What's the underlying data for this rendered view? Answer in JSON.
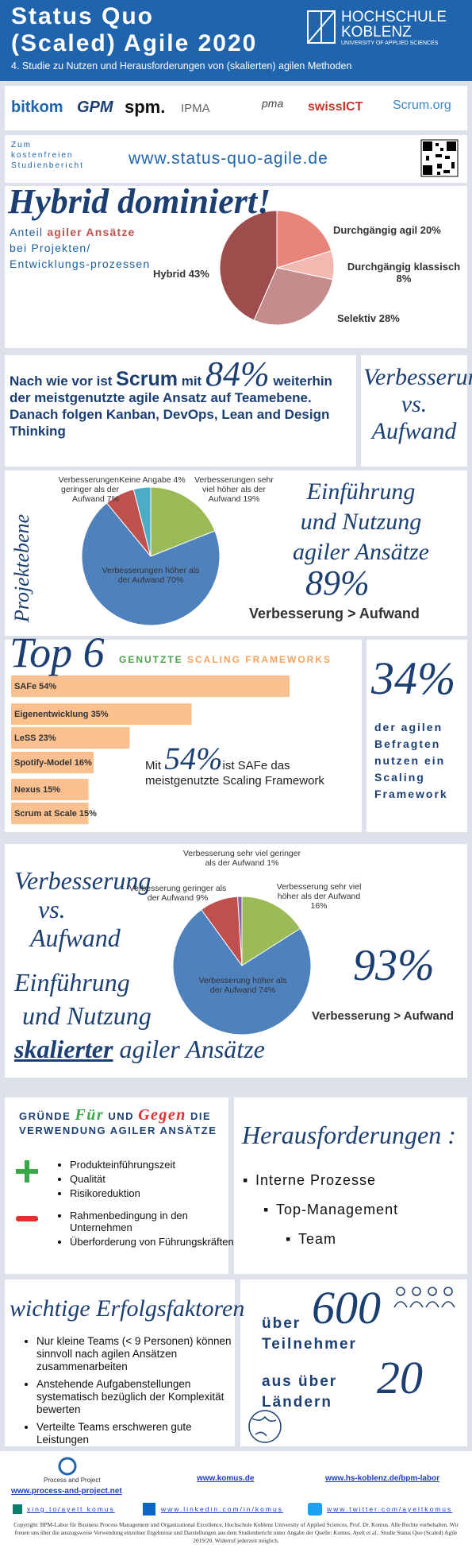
{
  "header": {
    "title_lines": [
      "Status Quo",
      "(Scaled) Agile 2020"
    ],
    "subtitle": "4. Studie zu Nutzen und Herausforderungen von (skalierten) agilen Methoden",
    "logo": [
      "HOCHSCHULE",
      "KOBLENZ",
      "UNIVERSITY OF APPLIED SCIENCES"
    ]
  },
  "partners": [
    "bitkom",
    "GPM",
    "spm.",
    "IPMA",
    "pma",
    "swissICT",
    "Scrum.org"
  ],
  "link": {
    "lead": [
      "Zum",
      "kostenfreien",
      "Studienbericht"
    ],
    "url": "www.status-quo-agile.de"
  },
  "hybrid": {
    "title": "Hybrid dominiert!",
    "text": [
      "Anteil ",
      "agiler Ansätze",
      " bei Projekten/ Entwicklungs-prozessen"
    ],
    "chart": {
      "type": "pie",
      "labels": [
        "Durchgängig agil 20%",
        "Durchgängig klassisch 8%",
        "Selektiv 28%",
        "Hybrid 43%"
      ],
      "values": [
        20,
        8,
        28,
        43
      ],
      "colors": [
        "#e8847a",
        "#f2b9b0",
        "#c48c8c",
        "#9e4c4c"
      ]
    }
  },
  "scrum": {
    "text": [
      "Nach wie vor ist ",
      "Scrum",
      " mit ",
      "84%",
      " weiterhin der meistgenutzte agile Ansatz auf Teamebene. Danach folgen Kanban, DevOps, Lean and Design Thinking"
    ],
    "side": [
      "Verbesserung",
      "vs.",
      "Aufwand"
    ]
  },
  "project": {
    "side_label": "Projektebene",
    "chart": {
      "type": "pie",
      "labels": [
        "Verbesserungen sehr viel höher als der Aufwand 19%",
        "Verbesserungen höher als der Aufwand 70%",
        "Verbesserungen geringer als der Aufwand 7%",
        "Keine Angabe 4%"
      ],
      "values": [
        19,
        70,
        7,
        4
      ],
      "colors": [
        "#9bbb59",
        "#4f81bd",
        "#c0504d",
        "#4bacc6"
      ]
    },
    "headline": [
      "Einführung",
      "und Nutzung",
      "agiler Ansätze"
    ],
    "percent": "89%",
    "result": "Verbesserung > Aufwand"
  },
  "frameworks": {
    "title": "Top 6",
    "subtitle": [
      "GENUTZTE ",
      "SCALING FRAMEWORKS"
    ],
    "chart": {
      "type": "bar",
      "labels": [
        "SAFe 54%",
        "Eigenentwicklung 35%",
        "LeSS 23%",
        "Spotify-Model 16%",
        "Nexus 15%",
        "Scrum at Scale 15%"
      ],
      "values": [
        54,
        35,
        23,
        16,
        15,
        15
      ],
      "color": "#fac090"
    },
    "note": [
      "Mit ",
      "54%",
      "ist SAFe das meistgenutzte Scaling Framework"
    ],
    "share": {
      "percent": "34%",
      "text": "der agilen Befragten nutzen ein Scaling Framework"
    }
  },
  "scaled": {
    "headline": [
      "Verbesserung",
      "vs.",
      "Aufwand",
      "Einführung",
      "und Nutzung",
      "skalierter",
      " agiler Ansätze"
    ],
    "chart": {
      "type": "pie",
      "labels": [
        "Verbesserung sehr viel höher als der Aufwand 16%",
        "Verbesserung höher als der Aufwand 74%",
        "Verbesserung geringer als der Aufwand 9%",
        "Verbesserung sehr viel geringer als der Aufwand 1%"
      ],
      "values": [
        16,
        74,
        9,
        1
      ],
      "colors": [
        "#9bbb59",
        "#4f81bd",
        "#c0504d",
        "#8064a2"
      ]
    },
    "percent": "93%",
    "result": "Verbesserung > Aufwand"
  },
  "reasons": {
    "title": [
      "GRÜNDE ",
      "Für",
      " UND ",
      "Gegen",
      " DIE VERWENDUNG AGILER ANSÄTZE"
    ],
    "pro": [
      "Produkteinführungszeit",
      "Qualität",
      "Risikoreduktion"
    ],
    "contra": [
      "Rahmenbedingung in den Unternehmen",
      "Überforderung von Führungskräften"
    ]
  },
  "challenges": {
    "title": "Herausforderungen :",
    "items": [
      "Interne Prozesse",
      "Top-Management",
      "Team"
    ]
  },
  "success": {
    "title": "wichtige Erfolgsfaktoren",
    "items": [
      "Nur kleine Teams (< 9 Personen) können sinnvoll nach agilen Ansätzen zusammenarbeiten",
      "Anstehende Aufgabenstellungen systematisch bezüglich der Komplexität bewerten",
      "Verteilte Teams erschweren gute Leistungen"
    ]
  },
  "participants": {
    "lines": [
      "über",
      "600",
      "Teilnehmer",
      "aus über",
      "20",
      "Ländern"
    ]
  },
  "footer": {
    "logo": "Process and Project",
    "links": [
      "www.process-and-project.net",
      "www.komus.de",
      "www.hs-koblenz.de/bpm-labor"
    ],
    "social": [
      "xing.to/ayelt komus",
      "www.linkedin.com/in/komus",
      "www.twitter.com/ayeltkomus"
    ],
    "copyright": "Copyright: BPM-Labor für Business Process Management und Organizational Excellence, Hochschule Koblenz University of Applied Sciences, Prof. Dr. Komus. Alle Rechte vorbehalten. Wir freuen uns über die auszugsweise Verwendung einzelner Ergebnisse und Darstellungen aus dem Studienbericht unter Angabe der Quelle: Komus, Ayelt et al.: Studie Status Quo (Scaled) Agile 2019/20. Widerruf jederzeit möglich."
  }
}
